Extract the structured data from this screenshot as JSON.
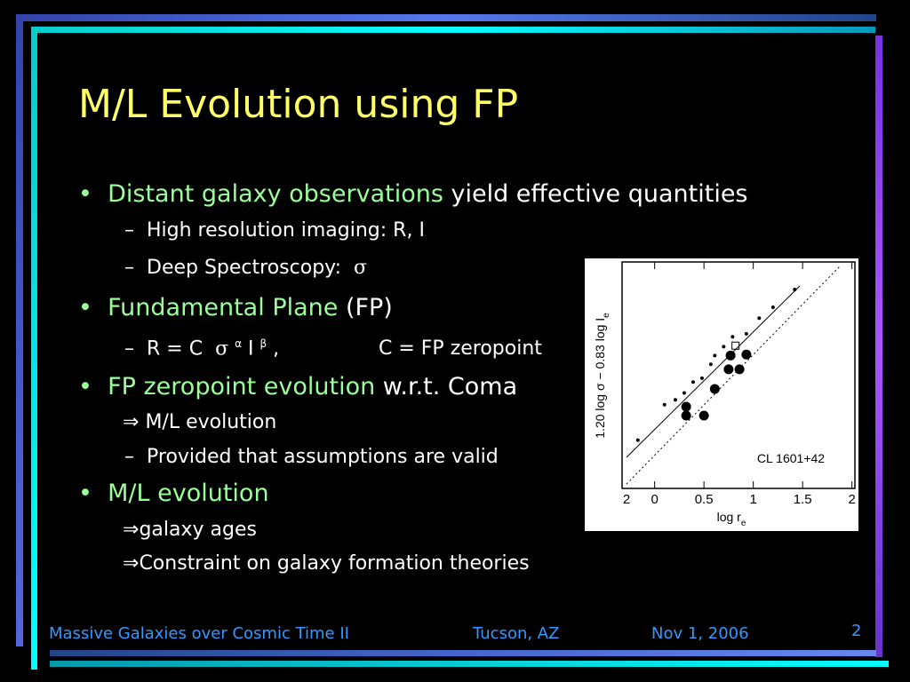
{
  "title": "M/L Evolution using FP",
  "items": [
    {
      "marker": "•",
      "parts": [
        "Distant galaxy observations",
        " yield effective quantities"
      ]
    },
    {
      "marker": "–",
      "parts": [
        "High resolution imaging: R, I"
      ]
    },
    {
      "marker": "–",
      "parts": [
        "Deep Spectroscopy:  ",
        "σ"
      ]
    },
    {
      "marker": "•",
      "parts": [
        "Fundamental Plane",
        " (FP)"
      ]
    },
    {
      "marker": "–",
      "parts": [
        "R = C  ",
        "σ",
        "α",
        " I ",
        "β",
        " ,",
        "C = FP zeropoint"
      ]
    },
    {
      "marker": "•",
      "parts": [
        "FP zeropoint evolution",
        " w.r.t. Coma"
      ]
    },
    {
      "marker": "⇒",
      "parts": [
        "M/L evolution"
      ]
    },
    {
      "marker": "–",
      "parts": [
        "Provided that assumptions are valid"
      ]
    },
    {
      "marker": "•",
      "parts": [
        "M/L evolution"
      ]
    },
    {
      "marker": "⇒",
      "parts": [
        "galaxy ages"
      ]
    },
    {
      "marker": "⇒",
      "parts": [
        "Constraint on galaxy formation theories"
      ]
    }
  ],
  "chart_data": {
    "type": "scatter",
    "x_label": "log r",
    "x_label_sub": "e",
    "y_label": "1.20  log σ − 0.83  log I",
    "y_label_sub": "e",
    "annotation": "CL 1601+42",
    "x_left_label": "2",
    "xlim": [
      -0.33,
      2.03
    ],
    "ylim": [
      0,
      2.3
    ],
    "xticks": [
      0,
      0.5,
      1,
      1.5,
      2
    ],
    "series": [
      {
        "name": "large",
        "x": [
          0.32,
          0.32,
          0.5,
          0.61,
          0.75,
          0.86,
          0.93,
          0.77
        ],
        "values": [
          0.74,
          0.83,
          0.74,
          1.01,
          1.21,
          1.21,
          1.36,
          1.35
        ]
      },
      {
        "name": "small",
        "x": [
          -0.17,
          0.1,
          0.21,
          0.3,
          0.39,
          0.48,
          0.57,
          0.61,
          0.7,
          0.79,
          0.93,
          1.06,
          1.2,
          1.42
        ],
        "values": [
          0.49,
          0.85,
          0.9,
          0.97,
          1.08,
          1.12,
          1.26,
          1.35,
          1.44,
          1.54,
          1.57,
          1.73,
          1.84,
          2.02
        ]
      },
      {
        "name": "square",
        "x": [
          0.82
        ],
        "values": [
          1.45
        ]
      }
    ]
  },
  "footer": {
    "event": "Massive Galaxies over Cosmic Time II",
    "place": "Tucson, AZ",
    "date": "Nov 1, 2006",
    "page": "2"
  }
}
